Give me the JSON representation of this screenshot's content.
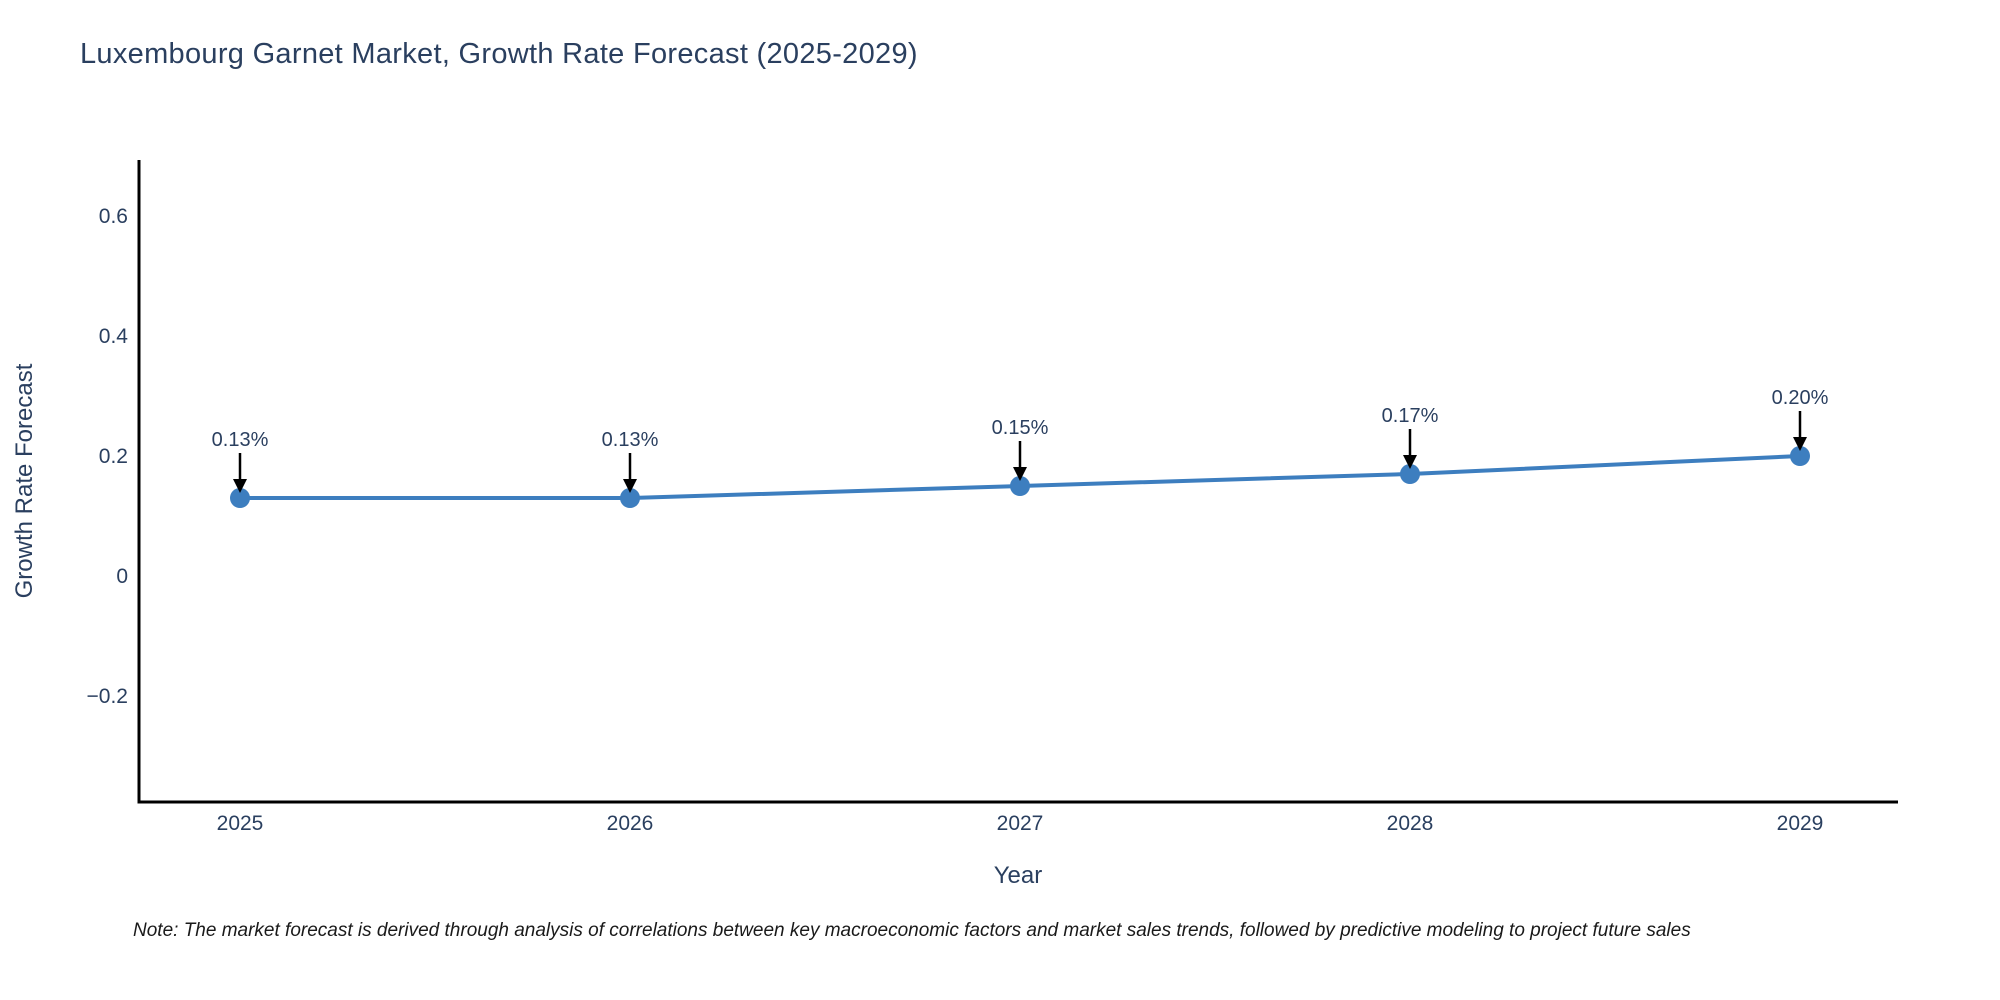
{
  "title": "Luxembourg Garnet Market, Growth Rate Forecast (2025-2029)",
  "footnote": "Note: The market forecast is derived through analysis of correlations between key macroeconomic factors and market sales trends, followed by predictive modeling to project future sales",
  "chart_data": {
    "type": "line",
    "title": "Luxembourg Garnet Market, Growth Rate Forecast (2025-2029)",
    "categories": [
      "2025",
      "2026",
      "2027",
      "2028",
      "2029"
    ],
    "series": [
      {
        "name": "Growth Rate Forecast",
        "values": [
          0.13,
          0.13,
          0.15,
          0.17,
          0.2
        ],
        "point_labels": [
          "0.13%",
          "0.13%",
          "0.15%",
          "0.17%",
          "0.20%"
        ]
      }
    ],
    "xlabel": "Year",
    "ylabel": "Growth Rate Forecast",
    "yticks": [
      -0.2,
      0,
      0.2,
      0.4,
      0.6
    ],
    "ylim": [
      -0.38,
      0.69
    ],
    "grid": false,
    "legend": false,
    "annotations_have_arrows": true,
    "colors": {
      "line": "#3d7ebf",
      "marker": "#3d7ebf",
      "axis": "#000000",
      "tick_label": "#2a3f5f",
      "annotation_text": "#2a3f5f",
      "annotation_arrow": "#000000",
      "title": "#2a3f5f"
    }
  }
}
